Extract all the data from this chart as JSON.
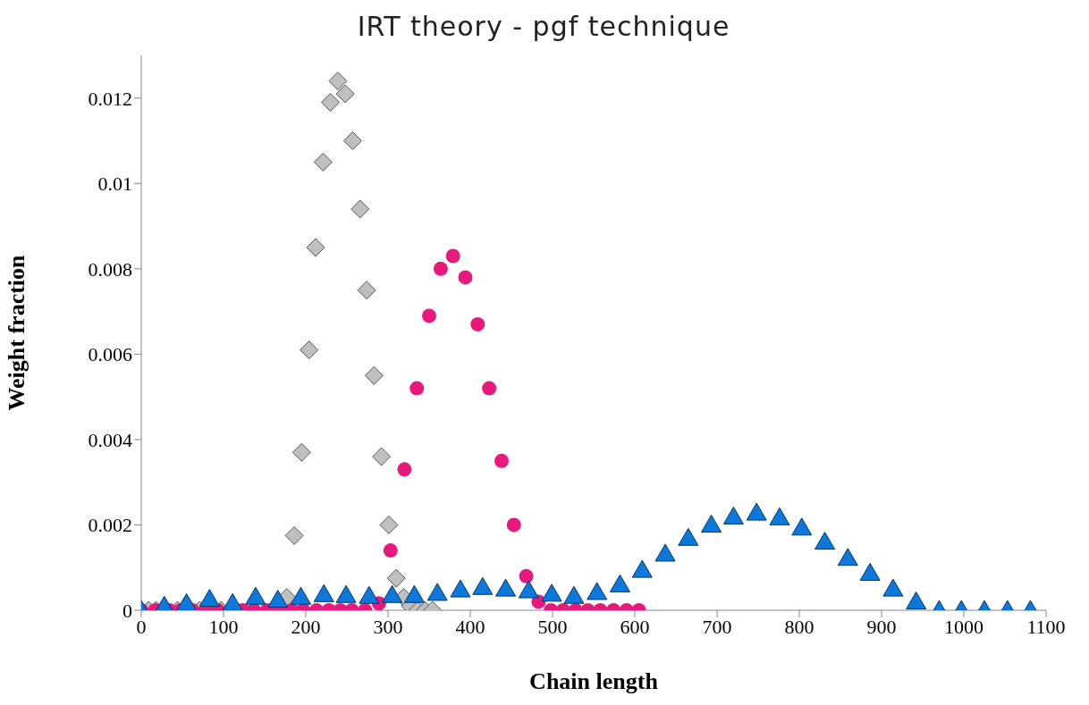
{
  "chart_data": {
    "type": "scatter",
    "title": "IRT theory - pgf technique",
    "xlabel": "Chain length",
    "ylabel": "Weight fraction",
    "xlim": [
      0,
      1100
    ],
    "xticks": [
      0,
      100,
      200,
      300,
      400,
      500,
      600,
      700,
      800,
      900,
      1000,
      1100
    ],
    "ylim": [
      0,
      0.013
    ],
    "yticks": [
      0,
      0.002,
      0.004,
      0.006,
      0.008,
      0.01,
      0.012
    ],
    "grid": false,
    "series": [
      {
        "color": "#bfbfbf",
        "marker": "diamond",
        "x": [
          9,
          18,
          27,
          35,
          44,
          53,
          62,
          71,
          80,
          89,
          97,
          106,
          115,
          124,
          133,
          142,
          150,
          159,
          168,
          177,
          186,
          195,
          204,
          212,
          221,
          230,
          239,
          248,
          257,
          266,
          274,
          283,
          292,
          301,
          310,
          319,
          327,
          336,
          345,
          354
        ],
        "values": [
          0,
          0,
          null,
          null,
          0,
          null,
          null,
          0,
          null,
          null,
          0,
          null,
          null,
          null,
          null,
          null,
          null,
          null,
          null,
          0.0003,
          0.00175,
          0.0037,
          0.0061,
          0.0085,
          0.0105,
          0.0119,
          0.0124,
          0.0121,
          0.011,
          0.0094,
          0.0075,
          0.0055,
          0.0036,
          0.002,
          0.00075,
          0.0003,
          0.0001,
          0,
          0,
          0
        ]
      },
      {
        "color": "#e8197d",
        "marker": "circle",
        "x": [
          0,
          17,
          34,
          48,
          62,
          78,
          93,
          107,
          123,
          137,
          153,
          167,
          183,
          197,
          213,
          228,
          242,
          256,
          272,
          289,
          303,
          320,
          335,
          350,
          364,
          379,
          394,
          409,
          423,
          438,
          453,
          468,
          483,
          498,
          513,
          528,
          543,
          558,
          574,
          590,
          605
        ],
        "values": [
          0,
          0,
          0,
          0,
          0,
          0,
          0,
          null,
          0,
          0,
          0,
          0,
          0,
          0,
          0,
          0,
          0,
          0,
          0,
          0.00016,
          0.0014,
          0.0033,
          0.0052,
          0.0069,
          0.008,
          0.0083,
          0.0078,
          0.0067,
          0.0052,
          0.0035,
          0.002,
          0.0008,
          0.0002,
          0,
          0,
          0,
          0,
          0,
          0,
          0,
          0
        ]
      },
      {
        "color": "#0b78dc",
        "marker": "triangle",
        "x": [
          0,
          28,
          55,
          83,
          111,
          139,
          166,
          194,
          222,
          249,
          277,
          305,
          332,
          360,
          388,
          415,
          443,
          471,
          499,
          526,
          554,
          582,
          609,
          637,
          665,
          693,
          720,
          748,
          776,
          803,
          831,
          859,
          886,
          914,
          942,
          970,
          997,
          1025,
          1053,
          1081
        ],
        "values": [
          0,
          0.0001,
          0.00016,
          0.00026,
          0.00016,
          0.00031,
          0.00024,
          0.00031,
          0.00037,
          0.00035,
          0.00033,
          0.00035,
          0.00035,
          0.0004,
          0.00048,
          0.00054,
          0.0005,
          0.00046,
          0.00038,
          0.00033,
          0.00042,
          0.0006,
          0.00094,
          0.00132,
          0.00169,
          0.002,
          0.00219,
          0.00228,
          0.00217,
          0.00193,
          0.0016,
          0.00122,
          0.00087,
          0.0005,
          0.0002,
          0,
          0,
          0,
          0,
          0
        ]
      }
    ]
  }
}
